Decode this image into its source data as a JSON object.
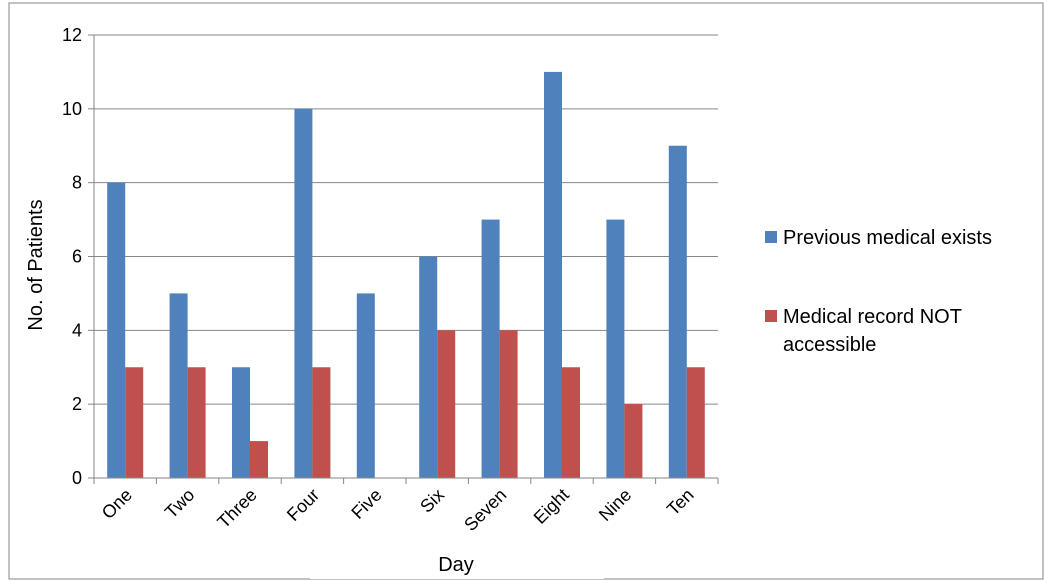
{
  "chart_data": {
    "type": "bar",
    "title": "",
    "xlabel": "Day",
    "ylabel": "No. of Patients",
    "categories": [
      "One",
      "Two",
      "Three",
      "Four",
      "Five",
      "Six",
      "Seven",
      "Eight",
      "Nine",
      "Ten"
    ],
    "series": [
      {
        "name": "Previous medical exists",
        "color": "#4f81bd",
        "values": [
          8,
          5,
          3,
          10,
          5,
          6,
          7,
          11,
          7,
          9
        ]
      },
      {
        "name": "Medical record NOT accessible",
        "color": "#c0504d",
        "values": [
          3,
          3,
          1,
          3,
          0,
          4,
          4,
          3,
          2,
          3
        ]
      }
    ],
    "ylim": [
      0,
      12
    ],
    "yticks": [
      0,
      2,
      4,
      6,
      8,
      10,
      12
    ],
    "grid": true,
    "legend_position": "right"
  },
  "legend": {
    "item1": "Previous medical exists",
    "item2_line1": "Medical record NOT",
    "item2_line2": "accessible"
  }
}
